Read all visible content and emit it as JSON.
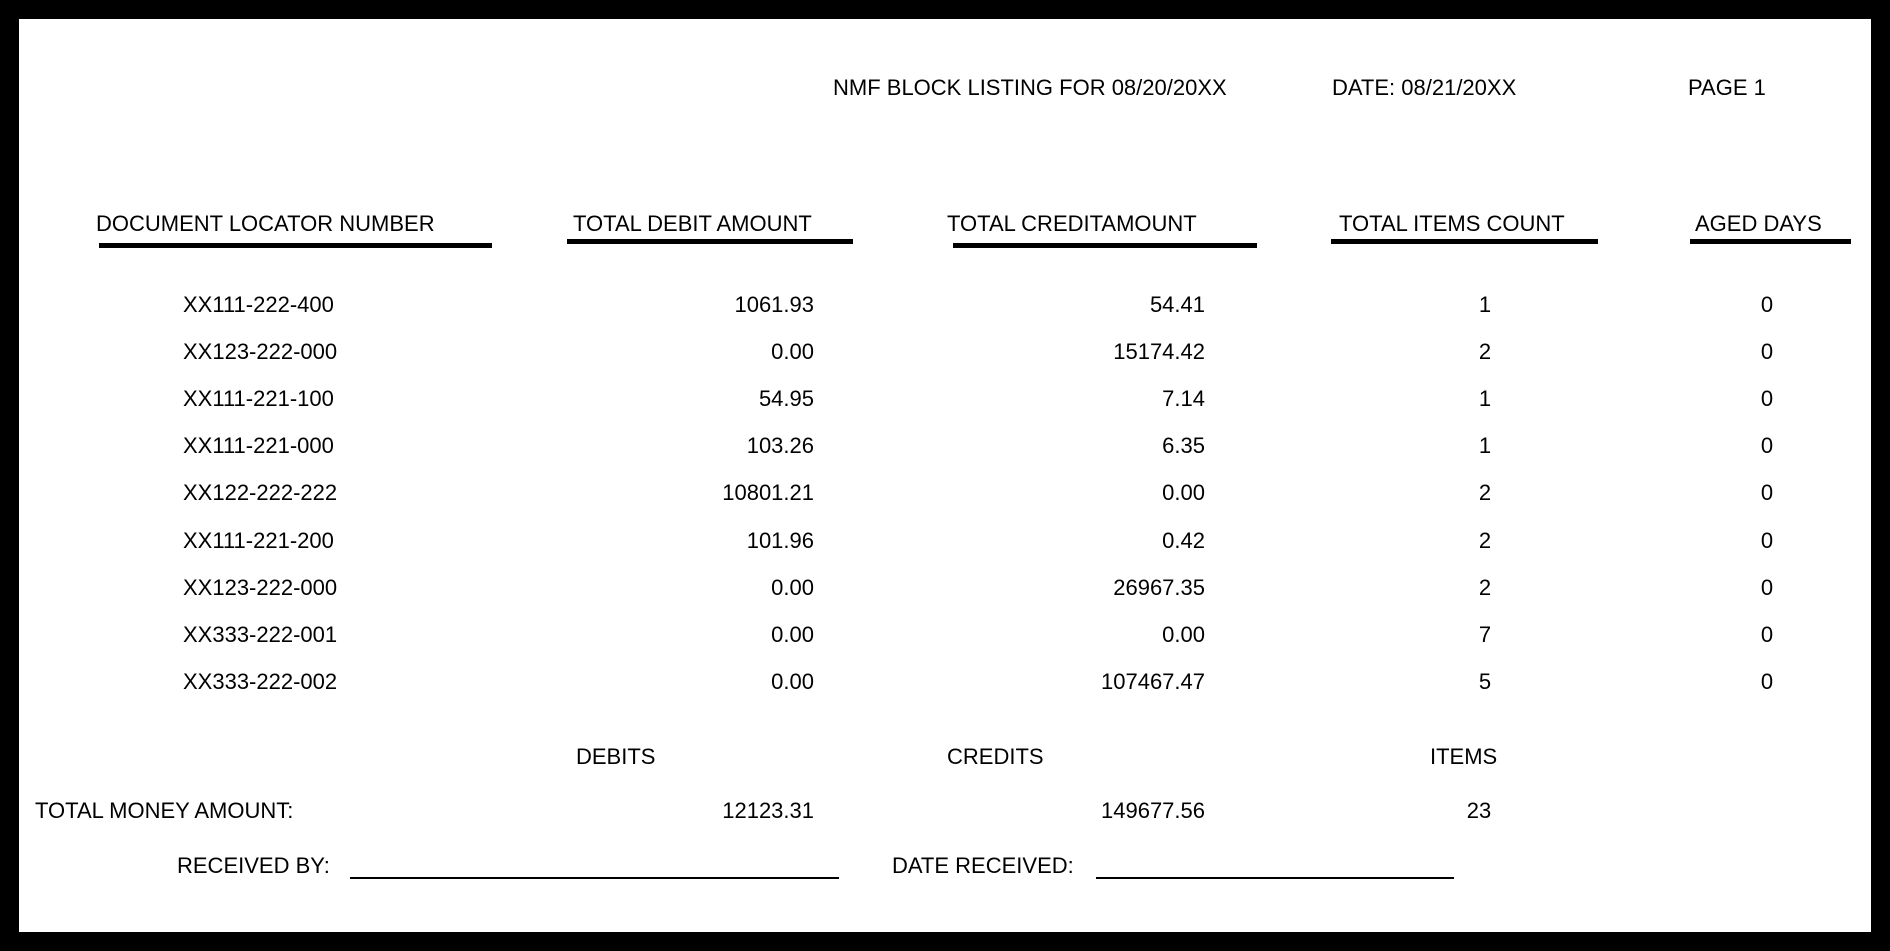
{
  "header": {
    "title": "NMF BLOCK LISTING FOR 08/20/20XX",
    "date": "DATE: 08/21/20XX",
    "page": "PAGE 1"
  },
  "columns": [
    "DOCUMENT  LOCATOR NUMBER",
    "TOTAL DEBIT AMOUNT",
    "TOTAL CREDITAMOUNT",
    "TOTAL ITEMS COUNT",
    "AGED DAYS"
  ],
  "rows": [
    [
      "XX111-222-400",
      "1061.93",
      "54.41",
      "1",
      "0"
    ],
    [
      "XX123-222-000",
      "0.00",
      "15174.42",
      "2",
      "0"
    ],
    [
      "XX111-221-100",
      "54.95",
      "7.14",
      "1",
      "0"
    ],
    [
      "XX111-221-000",
      "103.26",
      "6.35",
      "1",
      "0"
    ],
    [
      "XX122-222-222",
      "10801.21",
      "0.00",
      "2",
      "0"
    ],
    [
      "XX111-221-200",
      "101.96",
      "0.42",
      "2",
      "0"
    ],
    [
      "XX123-222-000",
      "0.00",
      "26967.35",
      "2",
      "0"
    ],
    [
      "XX333-222-001",
      "0.00",
      "0.00",
      "7",
      "0"
    ],
    [
      "XX333-222-002",
      "0.00",
      "107467.47",
      "5",
      "0"
    ]
  ],
  "totals": {
    "debits_label": "DEBITS",
    "credits_label": "CREDITS",
    "items_label": "ITEMS",
    "label": "TOTAL MONEY AMOUNT:",
    "debits": "12123.31",
    "credits": "149677.56",
    "items": "23"
  },
  "footer": {
    "received_by": "RECEIVED BY:",
    "date_received": "DATE RECEIVED:"
  }
}
